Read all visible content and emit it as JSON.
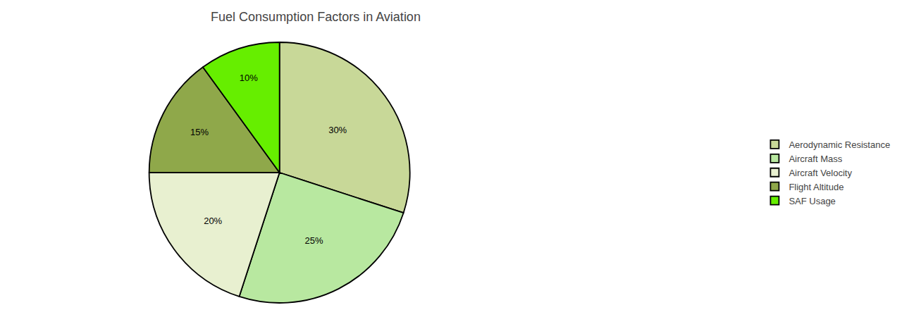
{
  "chart_data": {
    "type": "pie",
    "title": "Fuel Consumption Factors in Aviation",
    "categories": [
      "Aerodynamic Resistance",
      "Aircraft Mass",
      "Aircraft Velocity",
      "Flight Altitude",
      "SAF Usage"
    ],
    "values": [
      30,
      25,
      20,
      15,
      10
    ],
    "value_labels": [
      "30%",
      "25%",
      "20%",
      "15%",
      "10%"
    ],
    "colors": [
      "#c8d898",
      "#b8e8a0",
      "#e8f0d0",
      "#8fa84a",
      "#66ee00"
    ],
    "data_labels": true,
    "legend": "right"
  }
}
